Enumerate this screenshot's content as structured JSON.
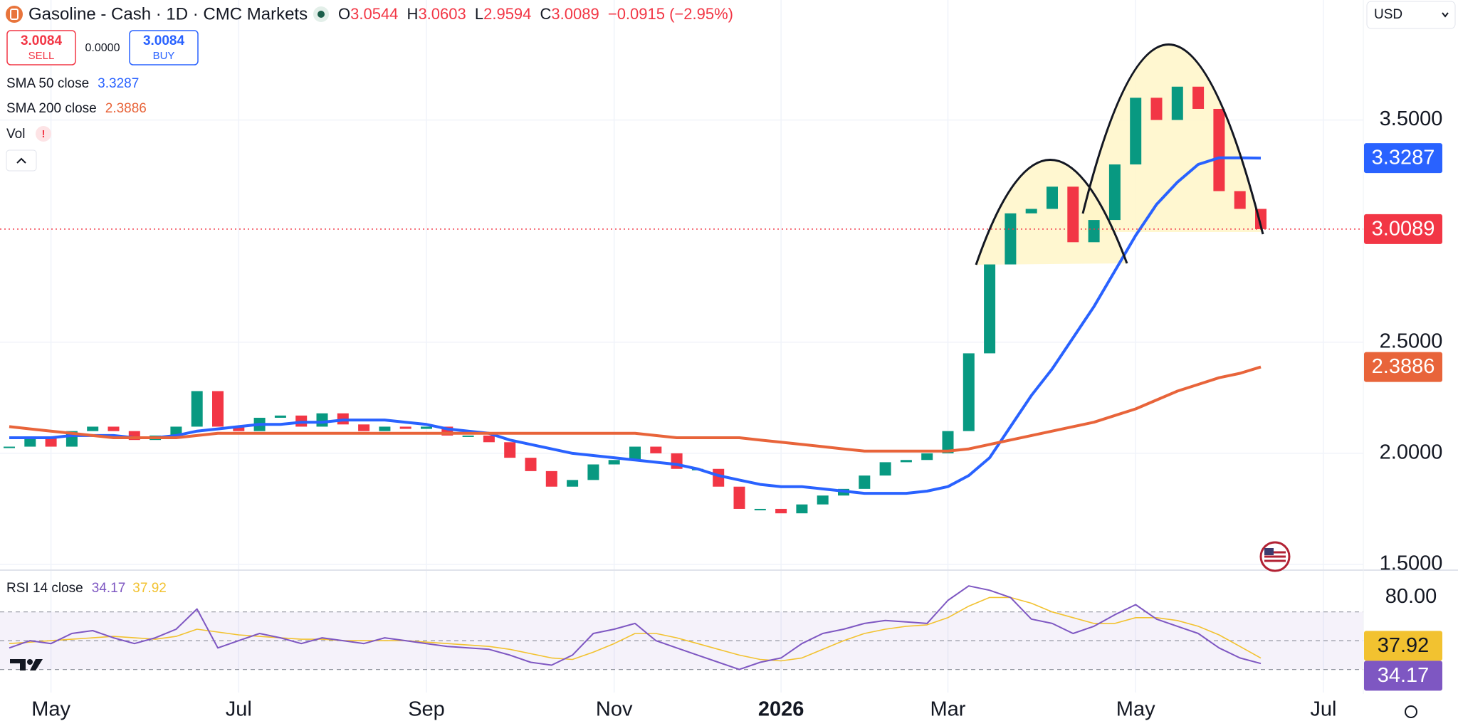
{
  "header": {
    "symbol": "Gasoline - Cash · 1D · CMC Markets",
    "ohlc": [
      {
        "label": "O",
        "value": 3.0544
      },
      {
        "label": "H",
        "value": 3.0603
      },
      {
        "label": "L",
        "value": 2.9594
      },
      {
        "label": "C",
        "value": 3.0089
      }
    ],
    "change": "−0.0915 (−2.95%)"
  },
  "trade": {
    "sell_price": 3.0084,
    "sell": "SELL",
    "spread": "0.0000",
    "buy_price": 3.0084,
    "buy": "BUY"
  },
  "currency": "USD",
  "indicators": {
    "vol": "Vol",
    "vol_alert": "!"
  },
  "chart_data": [
    {
      "type": "candlestick",
      "categories": [
        null,
        null,
        "May",
        null,
        null,
        null,
        null,
        null,
        null,
        null,
        null,
        "Jul",
        null,
        null,
        null,
        null,
        null,
        null,
        null,
        null,
        "Sep",
        null,
        null,
        null,
        null,
        null,
        null,
        null,
        null,
        "Nov",
        null,
        null,
        null,
        null,
        null,
        null,
        null,
        "2026",
        null,
        null,
        null,
        null,
        null,
        null,
        null,
        "Mar",
        null,
        null,
        null,
        null,
        null,
        null,
        null,
        null,
        "May",
        null,
        null,
        null,
        null,
        null,
        null,
        null,
        null,
        "Jul",
        null
      ],
      "values": [
        2.03,
        2.07,
        2.03,
        2.1,
        2.12,
        2.1,
        2.06,
        2.08,
        2.12,
        2.28,
        2.12,
        2.1,
        2.16,
        2.17,
        2.12,
        2.18,
        2.13,
        2.1,
        2.12,
        2.11,
        2.12,
        2.08,
        2.08,
        2.05,
        1.98,
        1.92,
        1.85,
        1.88,
        1.95,
        1.97,
        2.03,
        2.0,
        1.93,
        1.93,
        1.85,
        1.75,
        1.75,
        1.73,
        1.77,
        1.81,
        1.84,
        1.9,
        1.96,
        1.97,
        2.0,
        2.1,
        2.45,
        2.85,
        3.08,
        3.1,
        3.2,
        2.95,
        3.05,
        3.3,
        3.6,
        3.5,
        3.65,
        3.55,
        3.18,
        3.1,
        3.0089,
        null,
        null,
        null,
        null
      ],
      "up_color": "#089981",
      "down_color": "#f23645",
      "series": [
        {
          "name": "SMA 50 close",
          "color": "#2962ff",
          "values": [
            2.07,
            2.07,
            2.07,
            2.08,
            2.08,
            2.08,
            2.07,
            2.07,
            2.08,
            2.1,
            2.11,
            2.12,
            2.13,
            2.13,
            2.14,
            2.14,
            2.15,
            2.15,
            2.15,
            2.14,
            2.13,
            2.11,
            2.1,
            2.09,
            2.06,
            2.04,
            2.02,
            2.0,
            1.99,
            1.98,
            1.97,
            1.96,
            1.95,
            1.93,
            1.9,
            1.88,
            1.86,
            1.85,
            1.85,
            1.84,
            1.83,
            1.82,
            1.82,
            1.82,
            1.83,
            1.85,
            1.9,
            1.98,
            2.12,
            2.26,
            2.38,
            2.52,
            2.66,
            2.82,
            2.98,
            3.12,
            3.22,
            3.3,
            3.33,
            3.33,
            3.3287,
            null,
            null,
            null,
            null
          ]
        },
        {
          "name": "SMA 200 close",
          "color": "#e8643a",
          "values": [
            2.12,
            2.11,
            2.1,
            2.09,
            2.08,
            2.07,
            2.07,
            2.07,
            2.07,
            2.08,
            2.09,
            2.09,
            2.09,
            2.09,
            2.09,
            2.09,
            2.09,
            2.09,
            2.09,
            2.09,
            2.09,
            2.09,
            2.09,
            2.09,
            2.09,
            2.09,
            2.09,
            2.09,
            2.09,
            2.09,
            2.09,
            2.08,
            2.07,
            2.07,
            2.07,
            2.07,
            2.06,
            2.05,
            2.04,
            2.03,
            2.02,
            2.01,
            2.01,
            2.01,
            2.01,
            2.01,
            2.02,
            2.04,
            2.06,
            2.08,
            2.1,
            2.12,
            2.14,
            2.17,
            2.2,
            2.24,
            2.28,
            2.31,
            2.34,
            2.36,
            2.3886,
            null,
            null,
            null,
            null
          ]
        }
      ],
      "ylim": [
        1.5,
        4.04
      ],
      "yticks": [
        {
          "value": 3.5,
          "label": "3.5000"
        },
        {
          "value": 2.5,
          "label": "2.5000"
        },
        {
          "value": 2,
          "label": "2.0000"
        },
        {
          "value": 1.5,
          "label": "1.5000"
        }
      ],
      "grid": true
    },
    {
      "type": "line",
      "title": "RSI 14 close",
      "series": [
        {
          "color": "#7e57c2",
          "values": [
            45,
            50,
            48,
            55,
            57,
            52,
            48,
            52,
            58,
            72,
            45,
            50,
            55,
            52,
            48,
            52,
            50,
            48,
            52,
            50,
            48,
            46,
            45,
            44,
            40,
            35,
            33,
            40,
            55,
            58,
            62,
            50,
            45,
            40,
            35,
            30,
            35,
            38,
            48,
            55,
            58,
            62,
            64,
            63,
            62,
            78,
            88,
            85,
            80,
            65,
            62,
            55,
            60,
            68,
            75,
            65,
            60,
            55,
            45,
            38,
            34.17,
            null,
            null,
            null,
            null
          ]
        },
        {
          "color": "#f2c230",
          "values": [
            48,
            49,
            50,
            51,
            52,
            53,
            52,
            51,
            53,
            58,
            56,
            54,
            53,
            52,
            51,
            51,
            50,
            50,
            50,
            50,
            49,
            48,
            47,
            46,
            44,
            41,
            38,
            37,
            42,
            48,
            55,
            55,
            52,
            48,
            44,
            40,
            37,
            36,
            38,
            44,
            50,
            55,
            58,
            60,
            61,
            66,
            74,
            80,
            80,
            76,
            70,
            66,
            62,
            62,
            66,
            66,
            64,
            60,
            54,
            46,
            37.92,
            null,
            null,
            null,
            null
          ]
        }
      ],
      "ylim": [
        14,
        98
      ],
      "yticks": [
        {
          "value": 80,
          "label": "80.00"
        }
      ],
      "hlines": [
        70,
        50,
        30
      ],
      "band_color": "#7e57c2"
    }
  ]
}
